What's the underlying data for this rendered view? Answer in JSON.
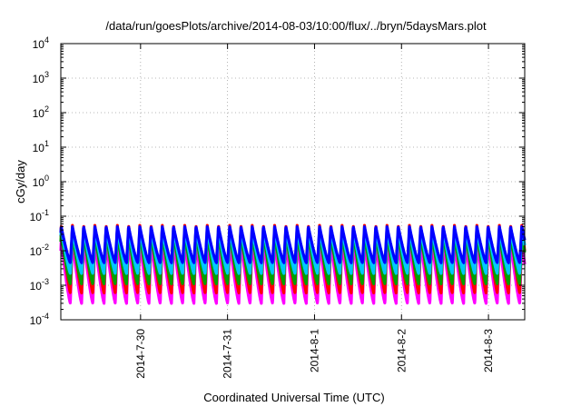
{
  "chart_data": {
    "type": "line",
    "title": "/data/run/goesPlots/archive/2014-08-03/10:00/flux/../bryn/5daysMars.plot",
    "xlabel": "Coordinated Universal Time (UTC)",
    "ylabel": "cGy/day",
    "yscale": "log",
    "ylim": [
      0.0001,
      10000
    ],
    "xlim": [
      "2014-07-29T02:00",
      "2014-08-03T10:00"
    ],
    "grid": true,
    "legend": "none",
    "x_ticks": [
      {
        "value": "2014-07-30T00:00",
        "label": "2014-7-30"
      },
      {
        "value": "2014-07-31T00:00",
        "label": "2014-7-31"
      },
      {
        "value": "2014-08-01T00:00",
        "label": "2014-8-1"
      },
      {
        "value": "2014-08-02T00:00",
        "label": "2014-8-2"
      },
      {
        "value": "2014-08-03T00:00",
        "label": "2014-8-3"
      }
    ],
    "y_ticks": [
      {
        "value": 0.0001,
        "base": "10",
        "exp": "-4"
      },
      {
        "value": 0.001,
        "base": "10",
        "exp": "-3"
      },
      {
        "value": 0.01,
        "base": "10",
        "exp": "-2"
      },
      {
        "value": 0.1,
        "base": "10",
        "exp": "-1"
      },
      {
        "value": 1,
        "base": "10",
        "exp": "0"
      },
      {
        "value": 10,
        "base": "10",
        "exp": "1"
      },
      {
        "value": 100,
        "base": "10",
        "exp": "2"
      },
      {
        "value": 1000,
        "base": "10",
        "exp": "3"
      },
      {
        "value": 10000,
        "base": "10",
        "exp": "4"
      }
    ],
    "period_hours": 3.1,
    "series": [
      {
        "color": "#ff00ff",
        "min": 0.0003,
        "max": 0.02
      },
      {
        "color": "#ff0000",
        "min": 0.0006,
        "max": 0.055
      },
      {
        "color": "#00a000",
        "min": 0.0011,
        "max": 0.032
      },
      {
        "color": "#00c8ff",
        "min": 0.0022,
        "max": 0.045
      },
      {
        "color": "#0000ff",
        "min": 0.0045,
        "max": 0.05
      }
    ]
  }
}
